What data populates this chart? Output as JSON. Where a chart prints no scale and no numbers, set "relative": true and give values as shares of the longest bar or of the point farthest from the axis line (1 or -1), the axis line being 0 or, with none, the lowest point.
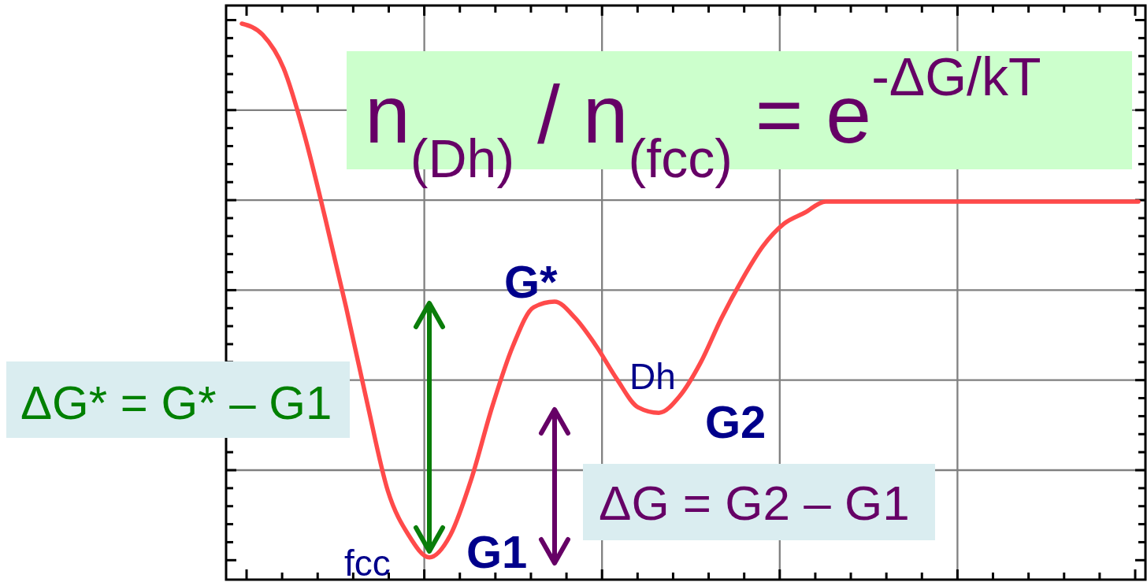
{
  "chart_data": {
    "type": "line",
    "relative": true,
    "grid": true,
    "color": "#ff4a4a",
    "categories": [
      null,
      null,
      null,
      null,
      null,
      null,
      null,
      null,
      null,
      null,
      null,
      null,
      null,
      null,
      null,
      null,
      null,
      null,
      null,
      null,
      null,
      null,
      null,
      null,
      null,
      null,
      null,
      null,
      null,
      null,
      null,
      null,
      null,
      null,
      null,
      null,
      null,
      null,
      null,
      null,
      null,
      null,
      null,
      null
    ],
    "values": [
      1,
      0.98,
      0.92,
      0.8,
      0.65,
      0.49,
      0.32,
      0.16,
      0.08,
      0.04,
      0.08,
      0.18,
      0.31,
      0.42,
      0.49,
      0.5,
      0.47,
      0.42,
      0.36,
      0.31,
      0.3,
      0.33,
      0.39,
      0.47,
      0.54,
      0.6,
      0.64,
      0.66,
      0.68,
      0.68,
      0.68,
      0.68,
      0.68,
      0.68,
      0.68,
      0.68,
      0.68,
      0.68,
      0.68,
      0.68,
      0.68,
      0.68,
      0.68,
      0.68
    ],
    "annotations": [
      "n$_{(Dh)}$ / n$_{(fcc)}$ = e$^{-ΔG/kT}$",
      "ΔG* = G* – G1",
      "ΔG = G2 – G1",
      "G*",
      "G1",
      "G2",
      "Dh",
      "fcc"
    ]
  }
}
